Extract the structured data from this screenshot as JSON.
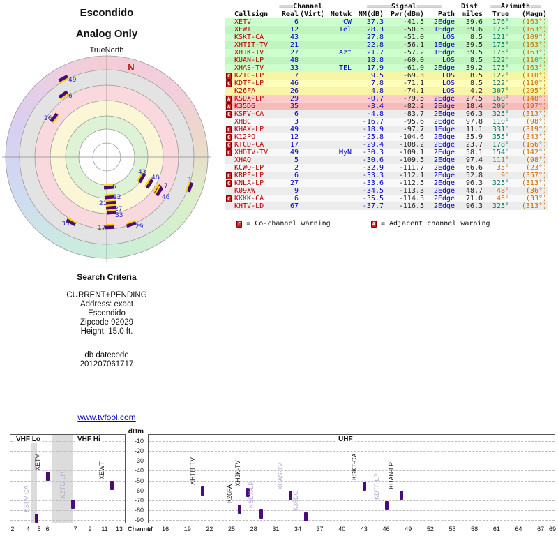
{
  "colors": {
    "callsign": "#bb0000",
    "channel_num": "#0000cc",
    "true_az": "#007a60",
    "magn_az": "#cc6a00",
    "warn": "#cc2222",
    "bar": "#4b0b78",
    "link": "#0000cc",
    "label_weak": "#b4a6d4",
    "tier_green": "#ccffcc",
    "tier_yellow": "#ffffbb",
    "tier_red": "#ffcccc",
    "tier_gray": "#ececec"
  },
  "radar": {
    "title": "Escondido",
    "subtitle": "Analog Only",
    "north_label": "TrueNorth",
    "n_marker": "N",
    "markers": [
      {
        "label": "49",
        "x": 88,
        "y": 38,
        "rot": 331,
        "lx": 7,
        "ly": 4
      },
      {
        "label": "6",
        "x": 88,
        "y": 61,
        "rot": 325,
        "lx": 7,
        "ly": 4
      },
      {
        "label": "26",
        "x": 75,
        "y": 94,
        "rot": 307,
        "lx": -15,
        "ly": 3
      },
      {
        "label": "35",
        "x": 99,
        "y": 243,
        "rot": 209,
        "lx": -14,
        "ly": 5
      },
      {
        "label": "29",
        "x": 185,
        "y": 246,
        "rot": 160,
        "lx": 6,
        "ly": 6
      },
      {
        "label": "6",
        "x": 153,
        "y": 193,
        "rot": 176,
        "lx": 5,
        "ly": 2
      },
      {
        "label": "12",
        "x": 154,
        "y": 207,
        "rot": 175,
        "lx": 5,
        "ly": 3
      },
      {
        "label": "21",
        "x": 156,
        "y": 215,
        "rot": 175,
        "lx": -17,
        "ly": 4
      },
      {
        "label": "27",
        "x": 156,
        "y": 222,
        "rot": 175,
        "lx": 5,
        "ly": 5
      },
      {
        "label": "33",
        "x": 157,
        "y": 229,
        "rot": 175,
        "lx": 5,
        "ly": 7
      },
      {
        "label": "17",
        "x": 154,
        "y": 250,
        "rot": 178,
        "lx": -17,
        "ly": 4
      },
      {
        "label": "43",
        "x": 200,
        "y": 180,
        "rot": 121,
        "lx": -5,
        "ly": -6
      },
      {
        "label": "48",
        "x": 211,
        "y": 188,
        "rot": 122,
        "lx": 3,
        "ly": -6
      },
      {
        "label": "7",
        "x": 223,
        "y": 196,
        "rot": 122,
        "lx": 9,
        "ly": -2
      },
      {
        "label": "46",
        "x": 225,
        "y": 199,
        "rot": 122,
        "lx": 4,
        "ly": 11
      },
      {
        "label": "3",
        "x": 269,
        "y": 193,
        "rot": 110,
        "lx": -4,
        "ly": -8
      }
    ]
  },
  "table": {
    "group_headers": {
      "channel_pre": "====",
      "channel": "Channel",
      "channel_post": "====",
      "signal_pre": "=======",
      "signal": "Signal",
      "signal_post": "=======",
      "dist": "Dist",
      "azimuth_pre": "===",
      "azimuth": "Azimuth",
      "azimuth_post": "==="
    },
    "col_headers": {
      "callsign": "Callsign",
      "real": "Real",
      "virt": "(Virt)",
      "netwk": "Netwk",
      "nm": "NM(dB)",
      "pwr": "Pwr(dBm)",
      "path": "Path",
      "miles": "miles",
      "true": "True",
      "magn": "(Magn)"
    },
    "rows": [
      {
        "warn": "",
        "callsign": "XETV",
        "real": "6",
        "virt": "",
        "netwk": "CW",
        "nm": "37.3",
        "pwr": "-41.5",
        "path": "2Edge",
        "miles": "39.6",
        "true": "176°",
        "magn": "(163°)",
        "tier": "green",
        "az_alt": false
      },
      {
        "warn": "",
        "callsign": "XEWT",
        "real": "12",
        "virt": "",
        "netwk": "Tel",
        "nm": "28.3",
        "pwr": "-50.5",
        "path": "1Edge",
        "miles": "39.6",
        "true": "175°",
        "magn": "(163°)",
        "tier": "green",
        "az_alt": false
      },
      {
        "warn": "",
        "callsign": "KSKT-CA",
        "real": "43",
        "virt": "",
        "netwk": "",
        "nm": "27.8",
        "pwr": "-51.0",
        "path": "LOS",
        "miles": "8.5",
        "true": "121°",
        "magn": "(109°)",
        "tier": "green",
        "az_alt": false
      },
      {
        "warn": "",
        "callsign": "XHTIT-TV",
        "real": "21",
        "virt": "",
        "netwk": "",
        "nm": "22.8",
        "pwr": "-56.1",
        "path": "1Edge",
        "miles": "39.5",
        "true": "175°",
        "magn": "(163°)",
        "tier": "green",
        "az_alt": false
      },
      {
        "warn": "",
        "callsign": "XHJK-TV",
        "real": "27",
        "virt": "",
        "netwk": "Azt",
        "nm": "21.7",
        "pwr": "-57.2",
        "path": "1Edge",
        "miles": "39.5",
        "true": "175°",
        "magn": "(163°)",
        "tier": "green",
        "az_alt": false
      },
      {
        "warn": "",
        "callsign": "KUAN-LP",
        "real": "48",
        "virt": "",
        "netwk": "",
        "nm": "18.8",
        "pwr": "-60.0",
        "path": "LOS",
        "miles": "8.5",
        "true": "122°",
        "magn": "(110°)",
        "tier": "green",
        "az_alt": false
      },
      {
        "warn": "",
        "callsign": "XHAS-TV",
        "real": "33",
        "virt": "",
        "netwk": "TEL",
        "nm": "17.9",
        "pwr": "-61.0",
        "path": "2Edge",
        "miles": "39.2",
        "true": "175°",
        "magn": "(163°)",
        "tier": "green",
        "az_alt": false
      },
      {
        "warn": "C",
        "callsign": "KZTC-LP",
        "real": "7",
        "virt": "",
        "netwk": "",
        "nm": "9.5",
        "pwr": "-69.3",
        "path": "LOS",
        "miles": "8.5",
        "true": "122°",
        "magn": "(110°)",
        "tier": "yellow",
        "az_alt": false
      },
      {
        "warn": "C",
        "callsign": "KDTF-LP",
        "real": "46",
        "virt": "",
        "netwk": "",
        "nm": "7.8",
        "pwr": "-71.1",
        "path": "LOS",
        "miles": "8.5",
        "true": "122°",
        "magn": "(110°)",
        "tier": "yellow",
        "az_alt": false
      },
      {
        "warn": "",
        "callsign": "K26FA",
        "real": "26",
        "virt": "",
        "netwk": "",
        "nm": "4.8",
        "pwr": "-74.1",
        "path": "LOS",
        "miles": "4.2",
        "true": "307°",
        "magn": "(295°)",
        "tier": "yellow",
        "az_alt": false
      },
      {
        "warn": "A",
        "callsign": "KSDX-LP",
        "real": "29",
        "virt": "",
        "netwk": "",
        "nm": "-0.7",
        "pwr": "-79.5",
        "path": "2Edge",
        "miles": "27.5",
        "true": "160°",
        "magn": "(148°)",
        "tier": "red",
        "az_alt": false
      },
      {
        "warn": "A",
        "callsign": "K35DG",
        "real": "35",
        "virt": "",
        "netwk": "",
        "nm": "-3.4",
        "pwr": "-82.2",
        "path": "2Edge",
        "miles": "18.4",
        "true": "209°",
        "magn": "(197°)",
        "tier": "red",
        "az_alt": false
      },
      {
        "warn": "C",
        "callsign": "KSFV-CA",
        "real": "6",
        "virt": "",
        "netwk": "",
        "nm": "-4.8",
        "pwr": "-83.7",
        "path": "2Edge",
        "miles": "96.3",
        "true": "325°",
        "magn": "(313°)",
        "tier": "gray",
        "az_alt": false
      },
      {
        "warn": "",
        "callsign": "XHBC",
        "real": "3",
        "virt": "",
        "netwk": "",
        "nm": "-16.7",
        "pwr": "-95.6",
        "path": "2Edge",
        "miles": "97.8",
        "true": "110°",
        "magn": "(98°)",
        "tier": "gray",
        "az_alt": false
      },
      {
        "warn": "C",
        "callsign": "KHAX-LP",
        "real": "49",
        "virt": "",
        "netwk": "",
        "nm": "-18.9",
        "pwr": "-97.7",
        "path": "1Edge",
        "miles": "11.1",
        "true": "331°",
        "magn": "(319°)",
        "tier": "gray",
        "az_alt": false
      },
      {
        "warn": "C",
        "callsign": "K12PO",
        "real": "12",
        "virt": "",
        "netwk": "",
        "nm": "-25.8",
        "pwr": "-104.6",
        "path": "2Edge",
        "miles": "35.9",
        "true": "355°",
        "magn": "(343°)",
        "tier": "gray",
        "az_alt": false
      },
      {
        "warn": "C",
        "callsign": "KTCD-CA",
        "real": "17",
        "virt": "",
        "netwk": "",
        "nm": "-29.4",
        "pwr": "-108.2",
        "path": "2Edge",
        "miles": "23.7",
        "true": "178°",
        "magn": "(166°)",
        "tier": "gray",
        "az_alt": false
      },
      {
        "warn": "C",
        "callsign": "XHDTV-TV",
        "real": "49",
        "virt": "",
        "netwk": "MyN",
        "nm": "-30.3",
        "pwr": "-109.1",
        "path": "2Edge",
        "miles": "58.1",
        "true": "154°",
        "magn": "(142°)",
        "tier": "gray",
        "az_alt": false
      },
      {
        "warn": "",
        "callsign": "XHAQ",
        "real": "5",
        "virt": "",
        "netwk": "",
        "nm": "-30.6",
        "pwr": "-109.5",
        "path": "2Edge",
        "miles": "97.4",
        "true": "111°",
        "magn": "(98°)",
        "tier": "gray",
        "az_alt": true
      },
      {
        "warn": "",
        "callsign": "KCWQ-LP",
        "real": "2",
        "virt": "",
        "netwk": "",
        "nm": "-32.9",
        "pwr": "-111.7",
        "path": "2Edge",
        "miles": "66.6",
        "true": "35°",
        "magn": "(23°)",
        "tier": "gray",
        "az_alt": true
      },
      {
        "warn": "C",
        "callsign": "KRPE-LP",
        "real": "6",
        "virt": "",
        "netwk": "",
        "nm": "-33.3",
        "pwr": "-112.1",
        "path": "2Edge",
        "miles": "52.8",
        "true": "9°",
        "magn": "(357°)",
        "tier": "gray",
        "az_alt": true
      },
      {
        "warn": "C",
        "callsign": "KNLA-LP",
        "real": "27",
        "virt": "",
        "netwk": "",
        "nm": "-33.6",
        "pwr": "-112.5",
        "path": "2Edge",
        "miles": "96.3",
        "true": "325°",
        "magn": "(313°)",
        "tier": "gray",
        "az_alt": false
      },
      {
        "warn": "",
        "callsign": "K09XW",
        "real": "9",
        "virt": "",
        "netwk": "",
        "nm": "-34.5",
        "pwr": "-113.3",
        "path": "2Edge",
        "miles": "48.7",
        "true": "48°",
        "magn": "(36°)",
        "tier": "gray",
        "az_alt": true
      },
      {
        "warn": "C",
        "callsign": "KKKK-CA",
        "real": "6",
        "virt": "",
        "netwk": "",
        "nm": "-35.5",
        "pwr": "-114.3",
        "path": "2Edge",
        "miles": "71.0",
        "true": "45°",
        "magn": "(33°)",
        "tier": "gray",
        "az_alt": true
      },
      {
        "warn": "",
        "callsign": "KHTV-LD",
        "real": "67",
        "virt": "",
        "netwk": "",
        "nm": "-37.7",
        "pwr": "-116.5",
        "path": "2Edge",
        "miles": "96.3",
        "true": "325°",
        "magn": "(313°)",
        "tier": "gray",
        "az_alt": false
      }
    ],
    "legend": [
      {
        "badge": "C",
        "text": "= Co-channel warning"
      },
      {
        "badge": "A",
        "text": "= Adjacent channel warning"
      }
    ]
  },
  "search": {
    "title": "Search Criteria",
    "lines": [
      "CURRENT+PENDING",
      "Address: exact",
      "Escondido",
      "Zipcode 92029",
      "Height: 15.0 ft."
    ],
    "datecode_label": "db datecode",
    "datecode_value": "201207061717"
  },
  "link_text": "www.tvfool.com",
  "chart_data": {
    "type": "bar",
    "xlabel": "Channel",
    "ylabel": "dBm",
    "ylim": [
      -90,
      -10
    ],
    "grid": true,
    "band_labels": [
      "VHF Lo",
      "VHF Hi",
      "UHF"
    ],
    "yticks": [
      -10,
      -20,
      -30,
      -40,
      -50,
      -60,
      -70,
      -80,
      -90
    ],
    "vhf_ticks": [
      2,
      4,
      5,
      6,
      7,
      9,
      11,
      13
    ],
    "uhf_ticks": [
      14,
      16,
      19,
      22,
      25,
      28,
      31,
      34,
      37,
      40,
      43,
      46,
      49,
      52,
      55,
      58,
      61,
      64,
      67,
      69
    ],
    "bars": [
      {
        "callsign": "XETV",
        "channel": 6,
        "dbm": -41.5,
        "strong": true,
        "xoff": 0
      },
      {
        "callsign": "KSFV-CA",
        "channel": 6,
        "dbm": -83.7,
        "strong": false,
        "xoff": -16
      },
      {
        "callsign": "KZTC-LP",
        "channel": 7,
        "dbm": -69.3,
        "strong": false,
        "xoff": -4
      },
      {
        "callsign": "XEWT",
        "channel": 12,
        "dbm": -50.5,
        "strong": true,
        "xoff": 0
      },
      {
        "callsign": "XHTIT-TV",
        "channel": 21,
        "dbm": -56.1,
        "strong": true,
        "xoff": 0
      },
      {
        "callsign": "K26FA",
        "channel": 26,
        "dbm": -74.1,
        "strong": true,
        "xoff": 0
      },
      {
        "callsign": "XHJK-TV",
        "channel": 27,
        "dbm": -57.2,
        "strong": true,
        "xoff": 2
      },
      {
        "callsign": "KSDX-LP",
        "channel": 29,
        "dbm": -79.5,
        "strong": false,
        "xoff": 0
      },
      {
        "callsign": "XHAS-TV",
        "channel": 33,
        "dbm": -61.0,
        "strong": false,
        "xoff": 0
      },
      {
        "callsign": "K35DG",
        "channel": 35,
        "dbm": -82.2,
        "strong": false,
        "xoff": 0
      },
      {
        "callsign": "KSKT-CA",
        "channel": 43,
        "dbm": -51.0,
        "strong": true,
        "xoff": 0
      },
      {
        "callsign": "KDTF-LP",
        "channel": 46,
        "dbm": -71.1,
        "strong": false,
        "xoff": 0
      },
      {
        "callsign": "KUAN-LP",
        "channel": 48,
        "dbm": -60.0,
        "strong": true,
        "xoff": 0
      }
    ]
  }
}
